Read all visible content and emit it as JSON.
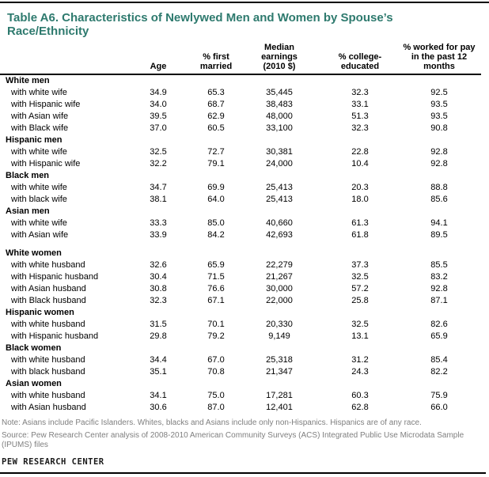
{
  "title": "Table A6. Characteristics of Newlywed Men and Women by Spouse’s\nRace/Ethnicity",
  "colors": {
    "title_teal": "#2E7A6E",
    "note_gray": "#7f7f7f",
    "rule_black": "#000000"
  },
  "table": {
    "columns": [
      "",
      "Age",
      "% first\nmarried",
      "Median\nearnings\n(2010 $)",
      "% college-\neducated",
      "% worked for pay\nin the past 12\nmonths"
    ],
    "sections": [
      {
        "name": "men",
        "groups": [
          {
            "label": "White men",
            "rows": [
              {
                "label": "with white wife",
                "values": [
                  "34.9",
                  "65.3",
                  "35,445",
                  "32.3",
                  "92.5"
                ]
              },
              {
                "label": "with Hispanic wife",
                "values": [
                  "34.0",
                  "68.7",
                  "38,483",
                  "33.1",
                  "93.5"
                ]
              },
              {
                "label": "with Asian wife",
                "values": [
                  "39.5",
                  "62.9",
                  "48,000",
                  "51.3",
                  "93.5"
                ]
              },
              {
                "label": "with Black wife",
                "values": [
                  "37.0",
                  "60.5",
                  "33,100",
                  "32.3",
                  "90.8"
                ]
              }
            ]
          },
          {
            "label": "Hispanic men",
            "rows": [
              {
                "label": "with white wife",
                "values": [
                  "32.5",
                  "72.7",
                  "30,381",
                  "22.8",
                  "92.8"
                ]
              },
              {
                "label": "with Hispanic wife",
                "values": [
                  "32.2",
                  "79.1",
                  "24,000",
                  "10.4",
                  "92.8"
                ]
              }
            ]
          },
          {
            "label": "Black men",
            "rows": [
              {
                "label": "with white wife",
                "values": [
                  "34.7",
                  "69.9",
                  "25,413",
                  "20.3",
                  "88.8"
                ]
              },
              {
                "label": "with black wife",
                "values": [
                  "38.1",
                  "64.0",
                  "25,413",
                  "18.0",
                  "85.6"
                ]
              }
            ]
          },
          {
            "label": "Asian men",
            "rows": [
              {
                "label": "with white wife",
                "values": [
                  "33.3",
                  "85.0",
                  "40,660",
                  "61.3",
                  "94.1"
                ]
              },
              {
                "label": "with Asian wife",
                "values": [
                  "33.9",
                  "84.2",
                  "42,693",
                  "61.8",
                  "89.5"
                ]
              }
            ]
          }
        ]
      },
      {
        "name": "women",
        "groups": [
          {
            "label": "White women",
            "rows": [
              {
                "label": "with white husband",
                "values": [
                  "32.6",
                  "65.9",
                  "22,279",
                  "37.3",
                  "85.5"
                ]
              },
              {
                "label": "with Hispanic husband",
                "values": [
                  "30.4",
                  "71.5",
                  "21,267",
                  "32.5",
                  "83.2"
                ]
              },
              {
                "label": "with Asian husband",
                "values": [
                  "30.8",
                  "76.6",
                  "30,000",
                  "57.2",
                  "92.8"
                ]
              },
              {
                "label": "with Black husband",
                "values": [
                  "32.3",
                  "67.1",
                  "22,000",
                  "25.8",
                  "87.1"
                ]
              }
            ]
          },
          {
            "label": "Hispanic women",
            "rows": [
              {
                "label": "with white husband",
                "values": [
                  "31.5",
                  "70.1",
                  "20,330",
                  "32.5",
                  "82.6"
                ]
              },
              {
                "label": "with Hispanic husband",
                "values": [
                  "29.8",
                  "79.2",
                  "9,149",
                  "13.1",
                  "65.9"
                ]
              }
            ]
          },
          {
            "label": "Black women",
            "rows": [
              {
                "label": "with white husband",
                "values": [
                  "34.4",
                  "67.0",
                  "25,318",
                  "31.2",
                  "85.4"
                ]
              },
              {
                "label": "with black husband",
                "values": [
                  "35.1",
                  "70.8",
                  "21,347",
                  "24.3",
                  "82.2"
                ]
              }
            ]
          },
          {
            "label": "Asian women",
            "rows": [
              {
                "label": "with white husband",
                "values": [
                  "34.1",
                  "75.0",
                  "17,281",
                  "60.3",
                  "75.9"
                ]
              },
              {
                "label": "with Asian husband",
                "values": [
                  "30.6",
                  "87.0",
                  "12,401",
                  "62.8",
                  "66.0"
                ]
              }
            ]
          }
        ]
      }
    ]
  },
  "footer": {
    "note": "Note: Asians include Pacific Islanders. Whites, blacks and Asians include only non-Hispanics. Hispanics are of any race.",
    "source": "Source: Pew Research Center analysis of 2008-2010 American Community Surveys (ACS) Integrated Public Use Microdata Sample (IPUMS) files",
    "brand": "PEW RESEARCH CENTER"
  }
}
